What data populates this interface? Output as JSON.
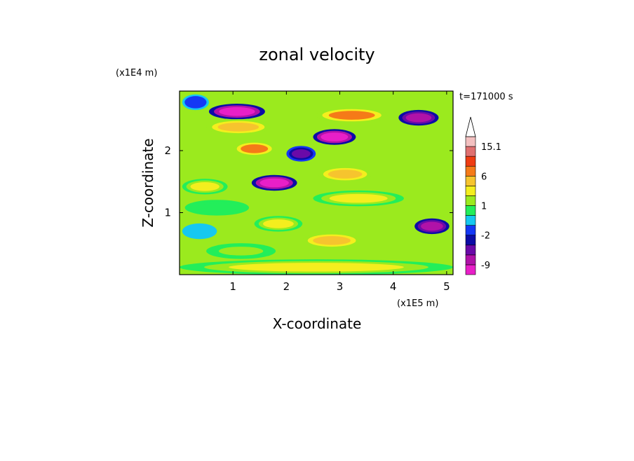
{
  "chart_data": {
    "type": "heatmap",
    "title": "zonal velocity",
    "xlabel": "X-coordinate",
    "ylabel": "Z-coordinate",
    "x_unit": "(x1E5 m)",
    "y_unit": "(x1E4 m)",
    "time_label": "t=171000 s",
    "xlim": [
      0,
      5.12
    ],
    "ylim": [
      0,
      2.96
    ],
    "x_ticks": [
      "1",
      "2",
      "3",
      "4",
      "5"
    ],
    "y_ticks": [
      "1",
      "2"
    ],
    "colorbar": {
      "levels": [
        -12,
        -9,
        -6,
        -4,
        -2,
        -1,
        0,
        1,
        2,
        4,
        6,
        9,
        12,
        15.1
      ],
      "labels": [
        "15.1",
        "6",
        "1",
        "-2",
        "-9"
      ],
      "colors": [
        "#e81fc8",
        "#b012a8",
        "#6a0aa8",
        "#0c0ca6",
        "#1438f5",
        "#16c8f0",
        "#23ee5a",
        "#9bea1e",
        "#f4ee1e",
        "#f6c42e",
        "#f57a18",
        "#ef3c12",
        "#e07070",
        "#f3c0c0"
      ],
      "extend": "max"
    },
    "bands": [
      {
        "z": 2.78,
        "x_start": 0.05,
        "x_end": 0.55,
        "value": -2
      },
      {
        "z": 2.63,
        "x_start": 0.55,
        "x_end": 1.6,
        "value": -12
      },
      {
        "z": 2.57,
        "x_start": 2.55,
        "x_end": 3.9,
        "value": 6
      },
      {
        "z": 2.53,
        "x_start": 4.1,
        "x_end": 4.85,
        "value": -9
      },
      {
        "z": 2.38,
        "x_start": 0.5,
        "x_end": 1.7,
        "value": 4
      },
      {
        "z": 2.22,
        "x_start": 2.5,
        "x_end": 3.3,
        "value": -12
      },
      {
        "z": 2.03,
        "x_start": 1.0,
        "x_end": 1.8,
        "value": 6
      },
      {
        "z": 1.95,
        "x_start": 2.0,
        "x_end": 2.55,
        "value": -6
      },
      {
        "z": 1.62,
        "x_start": 2.6,
        "x_end": 3.6,
        "value": 4
      },
      {
        "z": 1.48,
        "x_start": 1.35,
        "x_end": 2.2,
        "value": -12
      },
      {
        "z": 1.42,
        "x_start": 0.05,
        "x_end": 0.9,
        "value": 2
      },
      {
        "z": 1.23,
        "x_start": 2.5,
        "x_end": 4.2,
        "value": 2
      },
      {
        "z": 1.08,
        "x_start": 0.1,
        "x_end": 1.3,
        "value": 0
      },
      {
        "z": 0.82,
        "x_start": 1.4,
        "x_end": 2.3,
        "value": 2
      },
      {
        "z": 0.78,
        "x_start": 4.4,
        "x_end": 5.05,
        "value": -9
      },
      {
        "z": 0.7,
        "x_start": 0.05,
        "x_end": 0.7,
        "value": -1
      },
      {
        "z": 0.55,
        "x_start": 2.3,
        "x_end": 3.4,
        "value": 4
      },
      {
        "z": 0.38,
        "x_start": 0.5,
        "x_end": 1.8,
        "value": 1
      },
      {
        "z": 0.12,
        "x_start": 0.0,
        "x_end": 5.12,
        "value": 2
      }
    ]
  }
}
